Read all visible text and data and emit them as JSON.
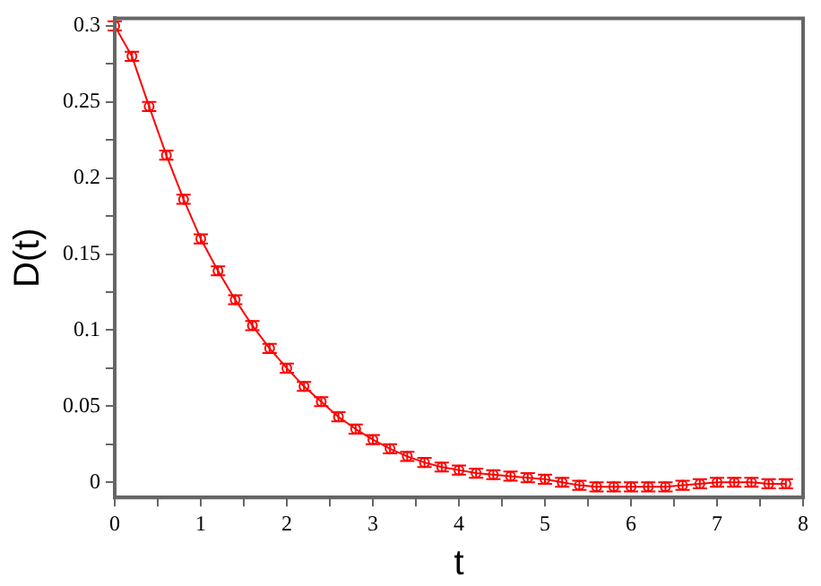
{
  "chart_data": {
    "type": "line",
    "xlabel": "t",
    "ylabel": "D(t)",
    "x": [
      0,
      0.2,
      0.4,
      0.6,
      0.8,
      1,
      1.2,
      1.4,
      1.6,
      1.8,
      2,
      2.2,
      2.4,
      2.6,
      2.8,
      3,
      3.2,
      3.4,
      3.6,
      3.8,
      4,
      4.2,
      4.4,
      4.6,
      4.8,
      5,
      5.2,
      5.4,
      5.6,
      5.8,
      6,
      6.2,
      6.4,
      6.6,
      6.8,
      7,
      7.2,
      7.4,
      7.6,
      7.8
    ],
    "series": [
      {
        "color": "#ff0000",
        "values": [
          0.3,
          0.28,
          0.247,
          0.215,
          0.186,
          0.16,
          0.139,
          0.12,
          0.103,
          0.088,
          0.075,
          0.063,
          0.053,
          0.043,
          0.035,
          0.028,
          0.022,
          0.017,
          0.013,
          0.01,
          0.008,
          0.006,
          0.005,
          0.004,
          0.003,
          0.002,
          0,
          -0.002,
          -0.003,
          -0.003,
          -0.003,
          -0.003,
          -0.003,
          -0.002,
          -0.001,
          0,
          0,
          0,
          -0.001,
          -0.001
        ],
        "errors": [
          0.003,
          0.003,
          0.003,
          0.003,
          0.003,
          0.003,
          0.003,
          0.003,
          0.003,
          0.003,
          0.003,
          0.003,
          0.003,
          0.003,
          0.003,
          0.003,
          0.003,
          0.003,
          0.003,
          0.003,
          0.003,
          0.003,
          0.003,
          0.003,
          0.003,
          0.003,
          0.003,
          0.003,
          0.003,
          0.003,
          0.003,
          0.003,
          0.003,
          0.003,
          0.003,
          0.003,
          0.003,
          0.003,
          0.003,
          0.003
        ]
      }
    ],
    "marker": "circle",
    "line_style": "solid",
    "xlim": [
      0,
      8
    ],
    "xticks": [
      0,
      {
        "value": 0.5,
        "label": null
      },
      1,
      {
        "value": 1.5,
        "label": null
      },
      2,
      {
        "value": 2.5,
        "label": null
      },
      3,
      {
        "value": 3.5,
        "label": null
      },
      4,
      {
        "value": 4.5,
        "label": null
      },
      5,
      {
        "value": 5.5,
        "label": null
      },
      6,
      {
        "value": 6.5,
        "label": null
      },
      7,
      {
        "value": 7.5,
        "label": null
      },
      8
    ],
    "ylim": [
      -0.01,
      0.305
    ],
    "yticks": [
      0,
      {
        "value": 0.025,
        "label": null
      },
      0.05,
      {
        "value": 0.075,
        "label": null
      },
      0.1,
      {
        "value": 0.125,
        "label": null
      },
      0.15,
      {
        "value": 0.175,
        "label": null
      },
      0.2,
      {
        "value": 0.225,
        "label": null
      },
      0.25,
      {
        "value": 0.275,
        "label": null
      },
      0.3
    ]
  }
}
